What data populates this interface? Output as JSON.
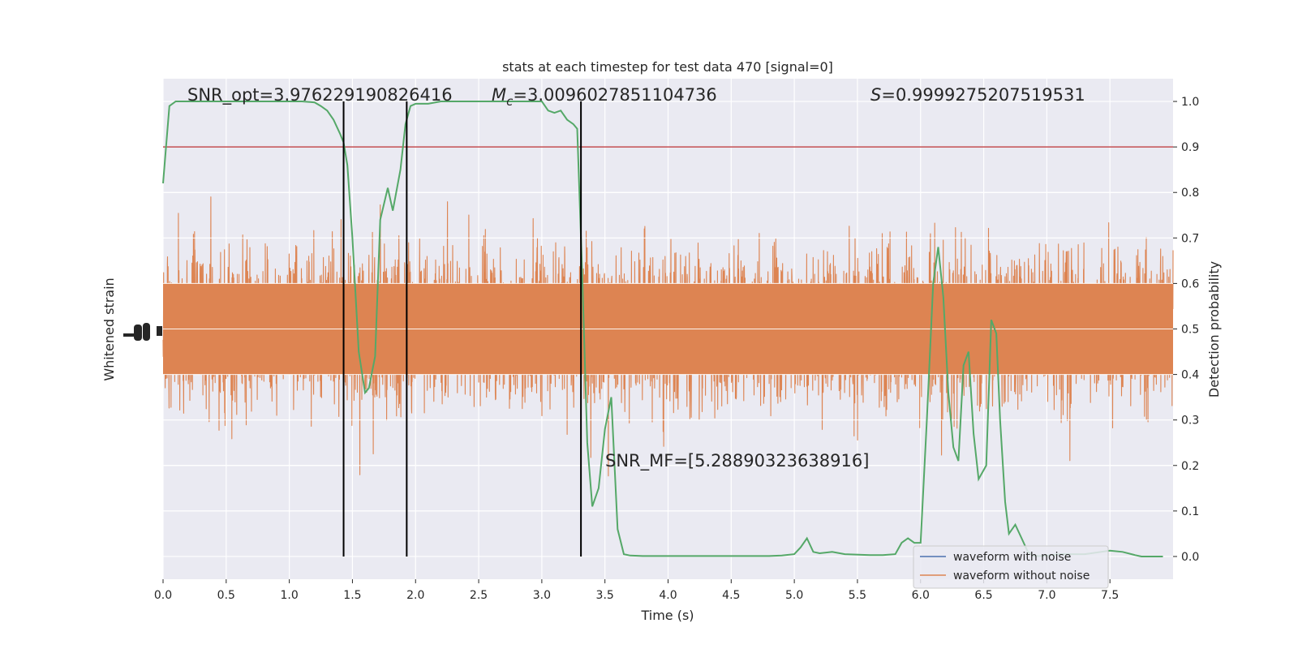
{
  "chart_data": {
    "type": "line",
    "title": "stats at each timestep for test data 470 [signal=0]",
    "xlabel": "Time (s)",
    "ylabel_left": "Whitened strain",
    "ylabel_right": "Detection probability",
    "xlim": [
      0.0,
      8.0
    ],
    "ylim_right": [
      -0.05,
      1.05
    ],
    "x_ticks": [
      "0.0",
      "0.5",
      "1.0",
      "1.5",
      "2.0",
      "2.5",
      "3.0",
      "3.5",
      "4.0",
      "4.5",
      "5.0",
      "5.5",
      "6.0",
      "6.5",
      "7.0",
      "7.5"
    ],
    "y_ticks_right": [
      "0.0",
      "0.1",
      "0.2",
      "0.3",
      "0.4",
      "0.5",
      "0.6",
      "0.7",
      "0.8",
      "0.9",
      "1.0"
    ],
    "grid": true,
    "colors": {
      "background": "#eaeaf2",
      "grid": "#ffffff",
      "noise": "#dd8452",
      "clean": "#4c72b0",
      "probability": "#55a868",
      "threshold": "#c44e52",
      "markers": "#000000"
    },
    "annotations": {
      "snr_opt": "SNR_opt=3.976229190826416",
      "mc_symbol": "M",
      "mc_sub": "c",
      "mc_value": "=3.0096027851104736",
      "s_symbol": "S",
      "s_value": "=0.9999275207519531",
      "snr_mf": "SNR_MF=[5.28890323638916]"
    },
    "threshold": 0.9,
    "vertical_markers": [
      1.43,
      1.93,
      3.31
    ],
    "legend": {
      "position": "lower right",
      "entries": [
        "waveform with noise",
        "waveform without noise"
      ]
    },
    "probability_series": {
      "name": "",
      "x": [
        0.0,
        0.05,
        0.1,
        0.2,
        0.4,
        0.6,
        0.8,
        1.0,
        1.1,
        1.2,
        1.25,
        1.3,
        1.35,
        1.4,
        1.43,
        1.46,
        1.5,
        1.55,
        1.6,
        1.63,
        1.68,
        1.72,
        1.78,
        1.82,
        1.88,
        1.92,
        1.96,
        2.0,
        2.05,
        2.1,
        2.2,
        2.3,
        2.5,
        2.7,
        2.9,
        3.0,
        3.05,
        3.1,
        3.15,
        3.2,
        3.25,
        3.28,
        3.32,
        3.36,
        3.4,
        3.45,
        3.5,
        3.55,
        3.6,
        3.65,
        3.7,
        3.8,
        4.0,
        4.2,
        4.4,
        4.6,
        4.8,
        4.9,
        5.0,
        5.05,
        5.1,
        5.15,
        5.2,
        5.3,
        5.4,
        5.6,
        5.7,
        5.8,
        5.85,
        5.9,
        5.95,
        6.0,
        6.05,
        6.1,
        6.14,
        6.18,
        6.22,
        6.26,
        6.3,
        6.34,
        6.38,
        6.42,
        6.46,
        6.52,
        6.56,
        6.6,
        6.63,
        6.67,
        6.7,
        6.75,
        6.8,
        6.85,
        6.9,
        6.95,
        7.0,
        7.1,
        7.3,
        7.5,
        7.6,
        7.7,
        7.75,
        7.8,
        7.85,
        7.92
      ],
      "y": [
        0.82,
        0.99,
        1.0,
        1.0,
        1.0,
        1.0,
        1.0,
        1.0,
        1.0,
        0.998,
        0.99,
        0.98,
        0.96,
        0.93,
        0.91,
        0.86,
        0.7,
        0.45,
        0.36,
        0.37,
        0.44,
        0.74,
        0.81,
        0.76,
        0.85,
        0.95,
        0.99,
        0.995,
        0.995,
        0.995,
        1.0,
        1.0,
        1.0,
        1.0,
        1.0,
        1.0,
        0.98,
        0.975,
        0.98,
        0.96,
        0.95,
        0.94,
        0.62,
        0.25,
        0.11,
        0.15,
        0.28,
        0.35,
        0.06,
        0.005,
        0.002,
        0.001,
        0.001,
        0.001,
        0.001,
        0.001,
        0.001,
        0.002,
        0.005,
        0.02,
        0.04,
        0.01,
        0.007,
        0.01,
        0.005,
        0.003,
        0.003,
        0.005,
        0.03,
        0.04,
        0.03,
        0.03,
        0.3,
        0.6,
        0.68,
        0.57,
        0.36,
        0.24,
        0.21,
        0.42,
        0.45,
        0.27,
        0.17,
        0.2,
        0.52,
        0.49,
        0.3,
        0.12,
        0.05,
        0.07,
        0.04,
        0.01,
        0.001,
        0.001,
        0.002,
        0.005,
        0.005,
        0.013,
        0.01,
        0.003,
        0.0,
        0.0,
        0.0,
        0.0
      ]
    }
  }
}
